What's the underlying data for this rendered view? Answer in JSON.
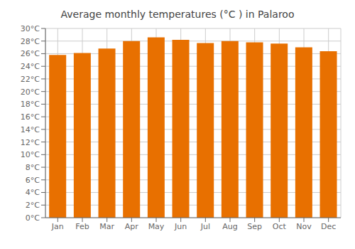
{
  "chart_data": {
    "type": "bar",
    "title": "Average monthly temperatures (°C ) in Palaroo",
    "categories": [
      "Jan",
      "Feb",
      "Mar",
      "Apr",
      "May",
      "Jun",
      "Jul",
      "Aug",
      "Sep",
      "Oct",
      "Nov",
      "Dec"
    ],
    "values": [
      25.8,
      26.1,
      26.8,
      28.0,
      28.6,
      28.2,
      27.7,
      28.0,
      27.8,
      27.6,
      27.0,
      26.4
    ],
    "color": "#E87000",
    "ylim": [
      0,
      30
    ],
    "yticks": [
      {
        "value": 0,
        "label": "0°C"
      },
      {
        "value": 2,
        "label": "2°C"
      },
      {
        "value": 4,
        "label": "4°C"
      },
      {
        "value": 6,
        "label": "6°C"
      },
      {
        "value": 8,
        "label": "8°C"
      },
      {
        "value": 10,
        "label": "10°C"
      },
      {
        "value": 12,
        "label": "12°C"
      },
      {
        "value": 14,
        "label": "14°C"
      },
      {
        "value": 16,
        "label": "16°C"
      },
      {
        "value": 18,
        "label": "18°C"
      },
      {
        "value": 20,
        "label": "20°C"
      },
      {
        "value": 22,
        "label": "22°C"
      },
      {
        "value": 24,
        "label": "24°C"
      },
      {
        "value": 26,
        "label": "26°C"
      },
      {
        "value": 28,
        "label": "28°C"
      },
      {
        "value": 30,
        "label": "30°C"
      }
    ],
    "grid": true
  }
}
